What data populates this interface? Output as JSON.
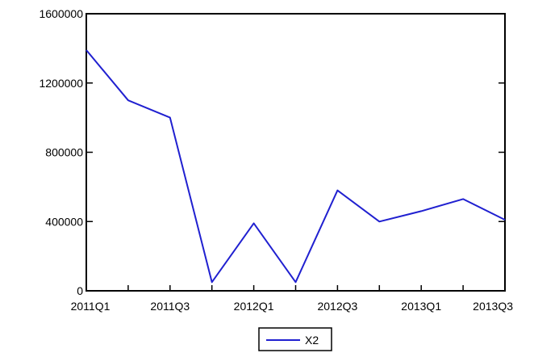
{
  "chart_data": {
    "type": "line",
    "title": "",
    "xlabel": "",
    "ylabel": "",
    "categories": [
      "2011Q1",
      "2011Q2",
      "2011Q3",
      "2011Q4",
      "2012Q1",
      "2012Q2",
      "2012Q3",
      "2012Q4",
      "2013Q1",
      "2013Q2",
      "2013Q3"
    ],
    "x_tick_labels": [
      {
        "category": "2011Q1",
        "label": "2011Q1"
      },
      {
        "category": "2011Q3",
        "label": "2011Q3"
      },
      {
        "category": "2012Q1",
        "label": "2012Q1"
      },
      {
        "category": "2012Q3",
        "label": "2012Q3"
      },
      {
        "category": "2013Q1",
        "label": "2013Q1"
      },
      {
        "category": "2013Q3",
        "label": "2013Q3"
      }
    ],
    "y_ticks": [
      0,
      400000,
      800000,
      1200000,
      1600000
    ],
    "y_tick_labels": [
      "0",
      "400000",
      "800000",
      "1200000",
      "1600000"
    ],
    "ylim": [
      0,
      1600000
    ],
    "grid": false,
    "legend_position": "bottom-center",
    "series": [
      {
        "name": "X2",
        "color": "#2020d0",
        "values": [
          1390000,
          1100000,
          1000000,
          50000,
          390000,
          50000,
          580000,
          400000,
          460000,
          530000,
          410000
        ]
      }
    ]
  }
}
